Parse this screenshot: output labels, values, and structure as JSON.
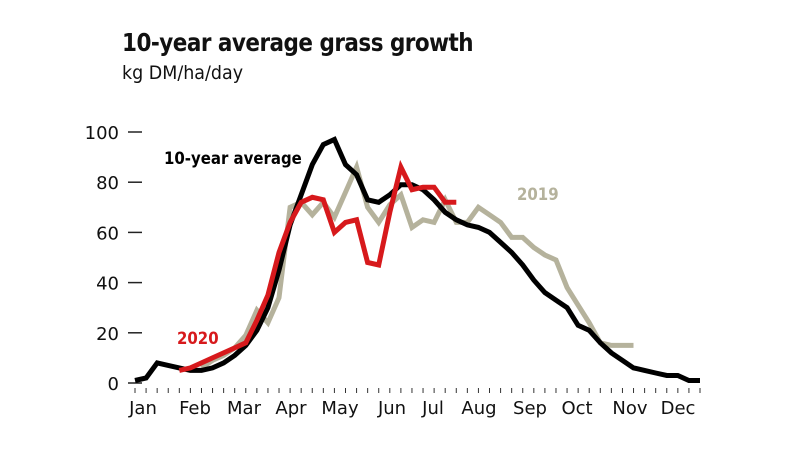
{
  "chart_data": {
    "type": "line",
    "title": "10-year average grass growth",
    "subtitle": "kg DM/ha/day",
    "xlabel": "",
    "ylabel": "kg DM/ha/day",
    "ylim": [
      0,
      100
    ],
    "yticks": [
      0,
      20,
      40,
      60,
      80,
      100
    ],
    "xlim": [
      1,
      52
    ],
    "x_unit": "week of year",
    "month_labels": [
      "Jan",
      "Feb",
      "Mar",
      "Apr",
      "May",
      "Jun",
      "Jul",
      "Aug",
      "Sep",
      "Oct",
      "Nov",
      "Dec"
    ],
    "grid": false,
    "legend": "inline labels",
    "series": [
      {
        "name": "10-year average",
        "label": "10-year average",
        "color": "#000000",
        "x": [
          1,
          2,
          3,
          4,
          5,
          6,
          7,
          8,
          9,
          10,
          11,
          12,
          13,
          14,
          15,
          16,
          17,
          18,
          19,
          20,
          21,
          22,
          23,
          24,
          25,
          26,
          27,
          28,
          29,
          30,
          31,
          32,
          33,
          34,
          35,
          36,
          37,
          38,
          39,
          40,
          41,
          42,
          43,
          44,
          45,
          46,
          47,
          48,
          49,
          50,
          51,
          52
        ],
        "values": [
          1,
          2,
          8,
          7,
          6,
          5,
          5,
          6,
          8,
          11,
          15,
          21,
          30,
          45,
          63,
          75,
          87,
          95,
          97,
          87,
          83,
          73,
          72,
          75,
          79,
          79,
          77,
          73,
          68,
          65,
          63,
          62,
          60,
          56,
          52,
          47,
          41,
          36,
          33,
          30,
          23,
          21,
          16,
          12,
          9,
          6,
          5,
          4,
          3,
          3,
          1,
          1
        ]
      },
      {
        "name": "2019",
        "label": "2019",
        "color": "#b5b29c",
        "x": [
          7,
          8,
          9,
          10,
          11,
          12,
          13,
          14,
          15,
          16,
          17,
          18,
          19,
          20,
          21,
          22,
          23,
          24,
          25,
          26,
          27,
          28,
          29,
          30,
          31,
          32,
          33,
          34,
          35,
          36,
          37,
          38,
          39,
          40,
          41,
          42,
          43,
          44,
          45,
          46
        ],
        "values": [
          6,
          9,
          11,
          14,
          19,
          29,
          24,
          34,
          70,
          72,
          67,
          72,
          66,
          76,
          86,
          70,
          64,
          71,
          75,
          62,
          65,
          64,
          73,
          64,
          64,
          70,
          67,
          64,
          58,
          58,
          54,
          51,
          49,
          38,
          31,
          24,
          16,
          15,
          15,
          15
        ]
      },
      {
        "name": "2020",
        "label": "2020",
        "color": "#d7191c",
        "x": [
          5,
          6,
          7,
          8,
          9,
          10,
          11,
          12,
          13,
          14,
          15,
          16,
          17,
          18,
          19,
          20,
          21,
          22,
          23,
          24,
          25,
          26,
          27,
          28,
          29,
          30
        ],
        "values": [
          5,
          6,
          8,
          10,
          12,
          14,
          16,
          25,
          35,
          52,
          64,
          72,
          74,
          73,
          60,
          64,
          65,
          48,
          47,
          68,
          86,
          77,
          78,
          78,
          72,
          72
        ]
      }
    ]
  }
}
